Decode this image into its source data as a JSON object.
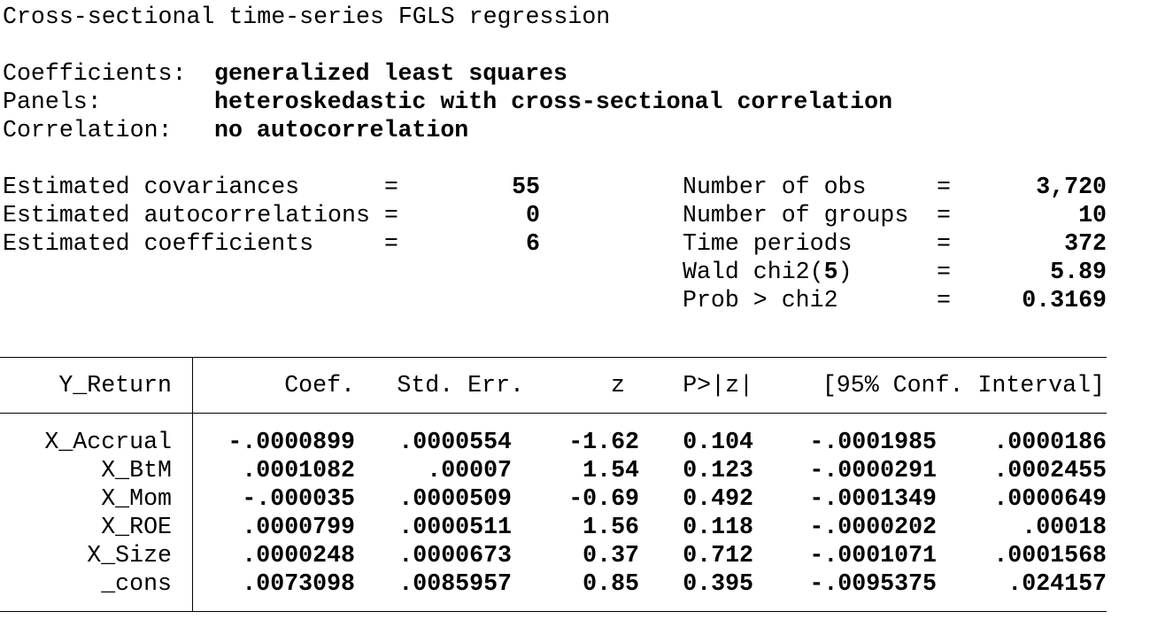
{
  "title": "Cross-sectional time-series FGLS regression",
  "model_info": [
    {
      "label": "Coefficients:",
      "value": "generalized least squares"
    },
    {
      "label": "Panels:",
      "value": "heteroskedastic with cross-sectional correlation"
    },
    {
      "label": "Correlation:",
      "value": "no autocorrelation"
    }
  ],
  "stats_left": [
    {
      "label": "Estimated covariances",
      "eq": "=",
      "value": "55"
    },
    {
      "label": "Estimated autocorrelations",
      "eq": "=",
      "value": "0"
    },
    {
      "label": "Estimated coefficients",
      "eq": "=",
      "value": "6"
    }
  ],
  "stats_right": [
    {
      "label": "Number of obs",
      "eq": "=",
      "value": "3,720"
    },
    {
      "label": "Number of groups",
      "eq": "=",
      "value": "10"
    },
    {
      "label": "Time periods",
      "eq": "=",
      "value": "372"
    },
    {
      "label_pre": "Wald chi2(",
      "label_num": "5",
      "label_post": ")",
      "eq": "=",
      "value": "5.89"
    },
    {
      "label": "Prob > chi2",
      "eq": "=",
      "value": "0.3169"
    }
  ],
  "table": {
    "depvar": "Y_Return",
    "columns": [
      "Coef.",
      "Std. Err.",
      "z",
      "P>|z|",
      "[95% Conf. Interval]"
    ],
    "rows": [
      {
        "name": "X_Accrual",
        "cells": [
          "-.0000899",
          ".0000554",
          "-1.62",
          "0.104",
          "-.0001985",
          ".0000186"
        ]
      },
      {
        "name": "X_BtM",
        "cells": [
          ".0001082",
          ".00007",
          "1.54",
          "0.123",
          "-.0000291",
          ".0002455"
        ]
      },
      {
        "name": "X_Mom",
        "cells": [
          "-.000035",
          ".0000509",
          "-0.69",
          "0.492",
          "-.0001349",
          ".0000649"
        ]
      },
      {
        "name": "X_ROE",
        "cells": [
          ".0000799",
          ".0000511",
          "1.56",
          "0.118",
          "-.0000202",
          ".00018"
        ]
      },
      {
        "name": "X_Size",
        "cells": [
          ".0000248",
          ".0000673",
          "0.37",
          "0.712",
          "-.0001071",
          ".0001568"
        ]
      },
      {
        "name": "_cons",
        "cells": [
          ".0073098",
          ".0085957",
          "0.85",
          "0.395",
          "-.0095375",
          ".024157"
        ]
      }
    ]
  }
}
